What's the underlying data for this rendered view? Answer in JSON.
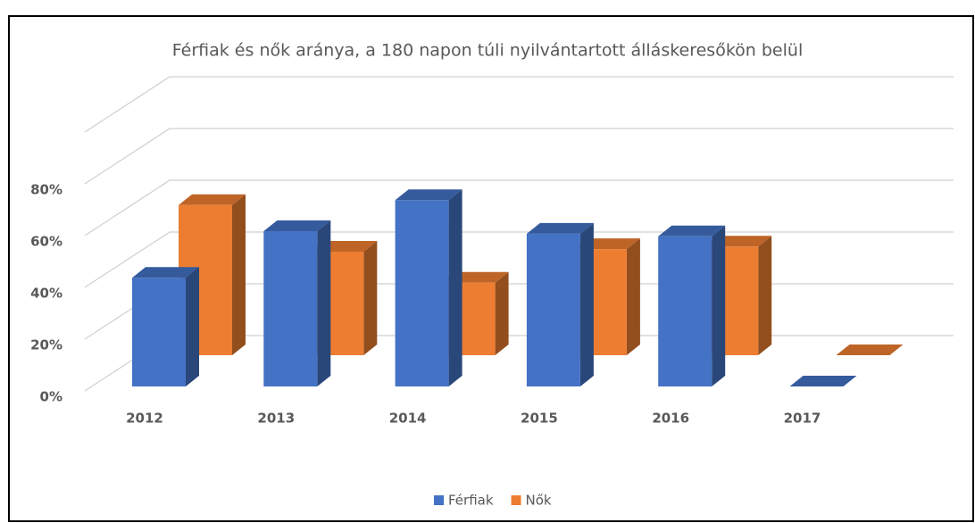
{
  "chart_data": {
    "type": "bar3d",
    "title": "Férfiak és nők aránya, a 180 napon túli nyilvántartott álláskeresőkön belül",
    "categories": [
      "2012",
      "2013",
      "2014",
      "2015",
      "2016",
      "2017"
    ],
    "series": [
      {
        "name": "Férfiak",
        "color": "#4472c4",
        "values": [
          42,
          60,
          72,
          59,
          58,
          0
        ]
      },
      {
        "name": "Nők",
        "color": "#ed7d31",
        "values": [
          58,
          40,
          28,
          41,
          42,
          0
        ]
      }
    ],
    "ylim": [
      0,
      100
    ],
    "yticks": [
      {
        "value": 0,
        "label": "0%"
      },
      {
        "value": 20,
        "label": "20%"
      },
      {
        "value": 40,
        "label": "40%"
      },
      {
        "value": 60,
        "label": "60%"
      },
      {
        "value": 80,
        "label": "80%"
      }
    ],
    "grid": true,
    "legend": "bottom"
  }
}
